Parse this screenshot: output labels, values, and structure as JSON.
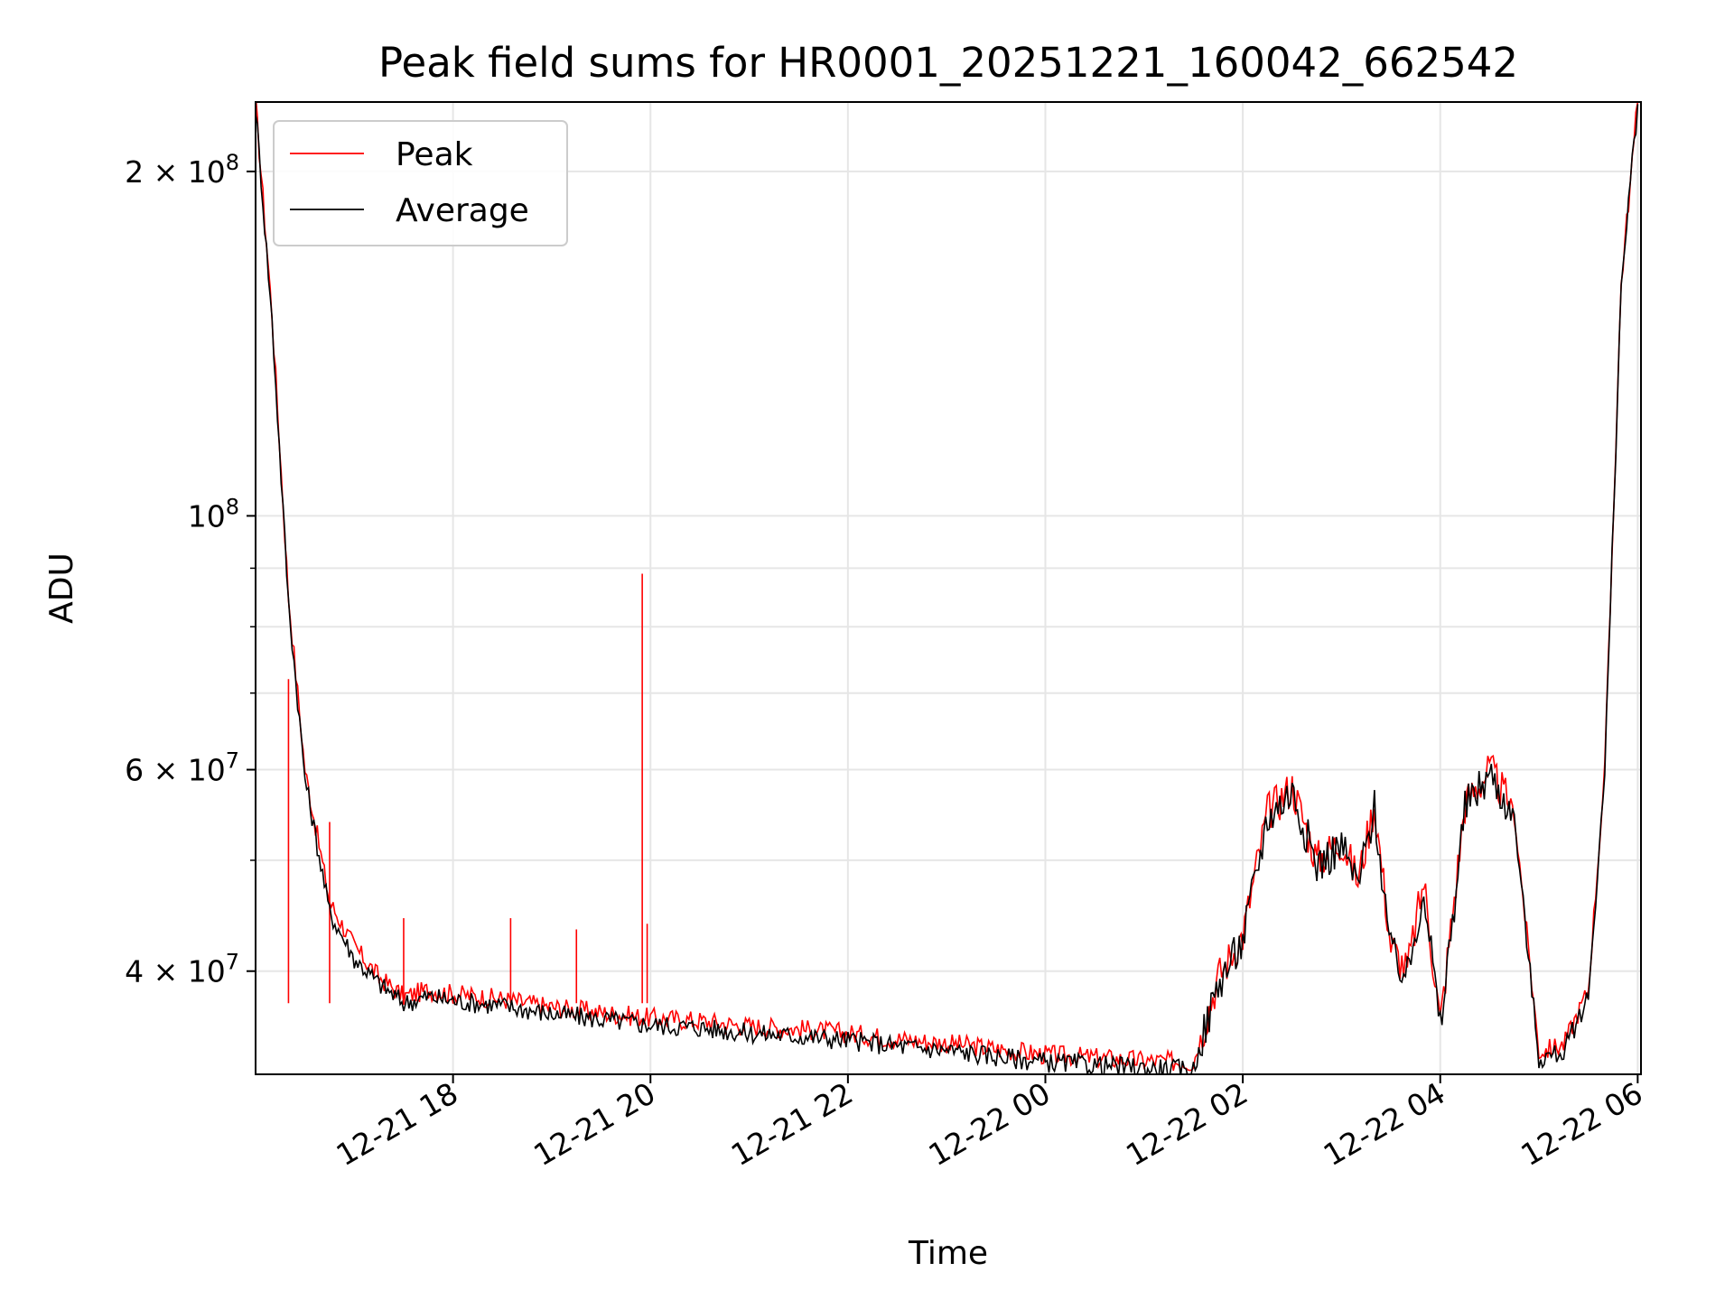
{
  "chart_data": {
    "type": "line",
    "title": "Peak field sums for HR0001_20251221_160042_662542",
    "xlabel": "Time",
    "ylabel": "ADU",
    "yscale": "log",
    "ylim": [
      32500000,
      230000000
    ],
    "xlim": [
      "12-21 16:00",
      "12-22 06:02"
    ],
    "grid": true,
    "legend_position": "top-left",
    "x_ticks": [
      "12-21 18",
      "12-21 20",
      "12-21 22",
      "12-22 00",
      "12-22 02",
      "12-22 04",
      "12-22 06"
    ],
    "y_ticks": [
      {
        "value": 200000000,
        "label": "2 × 10^8"
      },
      {
        "value": 100000000,
        "label": "10^8"
      },
      {
        "value": 60000000,
        "label": "6 × 10^7"
      },
      {
        "value": 40000000,
        "label": "4 × 10^7"
      }
    ],
    "y_minor_ticks": [
      30000000,
      50000000,
      70000000,
      80000000,
      90000000
    ],
    "series": [
      {
        "name": "Peak",
        "color": "#ff0000",
        "x": [
          "12-21 16:00",
          "12-21 16:10",
          "12-21 16:20",
          "12-21 16:30",
          "12-21 16:45",
          "12-21 17:00",
          "12-21 17:15",
          "12-21 17:30",
          "12-21 17:45",
          "12-21 18:00",
          "12-21 18:30",
          "12-21 19:00",
          "12-21 19:30",
          "12-21 20:00",
          "12-21 20:30",
          "12-21 21:00",
          "12-21 21:30",
          "12-21 22:00",
          "12-21 22:30",
          "12-21 23:00",
          "12-21 23:30",
          "12-22 00:00",
          "12-22 00:30",
          "12-22 01:00",
          "12-22 01:30",
          "12-22 01:45",
          "12-22 02:00",
          "12-22 02:15",
          "12-22 02:30",
          "12-22 02:45",
          "12-22 03:00",
          "12-22 03:10",
          "12-22 03:20",
          "12-22 03:30",
          "12-22 03:40",
          "12-22 03:50",
          "12-22 04:00",
          "12-22 04:15",
          "12-22 04:30",
          "12-22 04:45",
          "12-22 05:00",
          "12-22 05:15",
          "12-22 05:30",
          "12-22 05:40",
          "12-22 05:50",
          "12-22 06:00"
        ],
        "y": [
          230000000,
          150000000,
          85000000,
          60000000,
          46000000,
          42000000,
          39500000,
          38000000,
          38500000,
          38200000,
          37800000,
          37200000,
          36800000,
          36400000,
          36200000,
          35800000,
          35600000,
          35300000,
          34900000,
          34600000,
          34200000,
          33800000,
          33600000,
          33400000,
          33300000,
          39500000,
          43000000,
          55000000,
          58000000,
          50000000,
          52000000,
          48000000,
          56000000,
          42000000,
          40000000,
          48000000,
          36000000,
          56000000,
          60000000,
          55000000,
          34000000,
          34500000,
          38500000,
          60000000,
          160000000,
          230000000
        ],
        "spikes": [
          {
            "x": "12-21 16:20",
            "y": 72000000
          },
          {
            "x": "12-21 16:45",
            "y": 54000000
          },
          {
            "x": "12-21 17:30",
            "y": 44500000
          },
          {
            "x": "12-21 18:35",
            "y": 44500000
          },
          {
            "x": "12-21 19:15",
            "y": 43500000
          },
          {
            "x": "12-21 19:55",
            "y": 89000000
          },
          {
            "x": "12-21 19:58",
            "y": 44000000
          }
        ]
      },
      {
        "name": "Average",
        "color": "#000000",
        "x": [
          "12-21 16:00",
          "12-21 16:10",
          "12-21 16:20",
          "12-21 16:30",
          "12-21 16:45",
          "12-21 17:00",
          "12-21 17:15",
          "12-21 17:30",
          "12-21 17:45",
          "12-21 18:00",
          "12-21 18:30",
          "12-21 19:00",
          "12-21 19:30",
          "12-21 20:00",
          "12-21 20:30",
          "12-21 21:00",
          "12-21 21:30",
          "12-21 22:00",
          "12-21 22:30",
          "12-21 23:00",
          "12-21 23:30",
          "12-22 00:00",
          "12-22 00:30",
          "12-22 01:00",
          "12-22 01:30",
          "12-22 01:45",
          "12-22 02:00",
          "12-22 02:15",
          "12-22 02:30",
          "12-22 02:45",
          "12-22 03:00",
          "12-22 03:10",
          "12-22 03:20",
          "12-22 03:30",
          "12-22 03:40",
          "12-22 03:50",
          "12-22 04:00",
          "12-22 04:15",
          "12-22 04:30",
          "12-22 04:45",
          "12-22 05:00",
          "12-22 05:15",
          "12-22 05:30",
          "12-22 05:40",
          "12-22 05:50",
          "12-22 06:00"
        ],
        "y": [
          228000000,
          148000000,
          84000000,
          59000000,
          45000000,
          41000000,
          39000000,
          37500000,
          38000000,
          37700000,
          37300000,
          36700000,
          36300000,
          35900000,
          35700000,
          35300000,
          35100000,
          34800000,
          34400000,
          34100000,
          33700000,
          33300000,
          33100000,
          32900000,
          32800000,
          39000000,
          42500000,
          54500000,
          57500000,
          49500000,
          51500000,
          47500000,
          55500000,
          41500000,
          39500000,
          47500000,
          35500000,
          55500000,
          59500000,
          54500000,
          33500000,
          34000000,
          38000000,
          59500000,
          159000000,
          229000000
        ]
      }
    ]
  }
}
